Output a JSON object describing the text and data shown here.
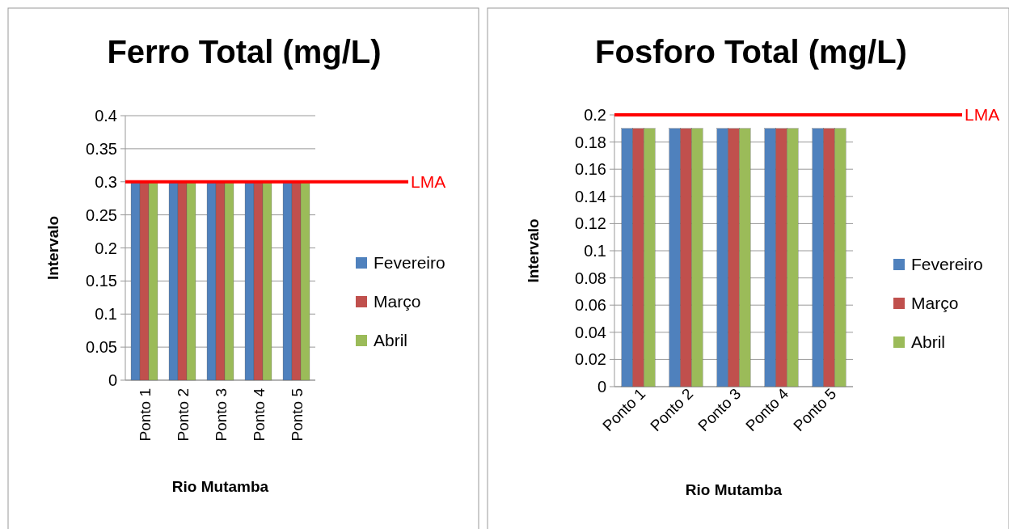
{
  "chart_data": [
    {
      "type": "bar",
      "title": "Ferro Total (mg/L)",
      "xlabel": "Rio Mutamba",
      "ylabel": "Intervalo",
      "categories": [
        "Ponto 1",
        "Ponto 2",
        "Ponto 3",
        "Ponto 4",
        "Ponto 5"
      ],
      "series": [
        {
          "name": "Fevereiro",
          "color": "#4f81bd",
          "values": [
            0.3,
            0.3,
            0.3,
            0.3,
            0.3
          ]
        },
        {
          "name": "Março",
          "color": "#c0504d",
          "values": [
            0.3,
            0.3,
            0.3,
            0.3,
            0.3
          ]
        },
        {
          "name": "Abril",
          "color": "#9bbb59",
          "values": [
            0.3,
            0.3,
            0.3,
            0.3,
            0.3
          ]
        }
      ],
      "ylim": [
        0,
        0.4
      ],
      "yticks": [
        0,
        0.05,
        0.1,
        0.15,
        0.2,
        0.25,
        0.3,
        0.35,
        0.4
      ],
      "grid": "y",
      "legend": "right",
      "ref_lines": [
        {
          "axis": "y",
          "value": 0.3,
          "label": "LMA",
          "color": "#ff0000"
        }
      ]
    },
    {
      "type": "bar",
      "title": "Fosforo Total (mg/L)",
      "xlabel": "Rio Mutamba",
      "ylabel": "Intervalo",
      "categories": [
        "Ponto 1",
        "Ponto 2",
        "Ponto 3",
        "Ponto 4",
        "Ponto 5"
      ],
      "series": [
        {
          "name": "Fevereiro",
          "color": "#4f81bd",
          "values": [
            0.19,
            0.19,
            0.19,
            0.19,
            0.19
          ]
        },
        {
          "name": "Março",
          "color": "#c0504d",
          "values": [
            0.19,
            0.19,
            0.19,
            0.19,
            0.19
          ]
        },
        {
          "name": "Abril",
          "color": "#9bbb59",
          "values": [
            0.19,
            0.19,
            0.19,
            0.19,
            0.19
          ]
        }
      ],
      "ylim": [
        0,
        0.2
      ],
      "yticks": [
        0,
        0.02,
        0.04,
        0.06,
        0.08,
        0.1,
        0.12,
        0.14,
        0.16,
        0.18,
        0.2
      ],
      "grid": "y",
      "legend": "right",
      "ref_lines": [
        {
          "axis": "y",
          "value": 0.2,
          "label": "LMA",
          "color": "#ff0000"
        }
      ]
    }
  ]
}
